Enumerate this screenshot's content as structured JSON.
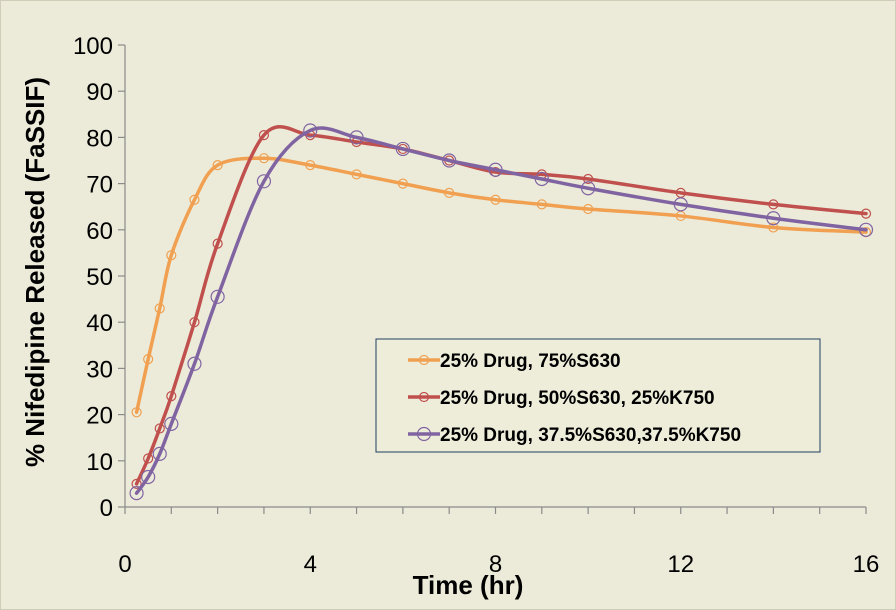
{
  "chart_data": {
    "type": "line",
    "title": "",
    "xlabel": "Time (hr)",
    "ylabel": "% Nifedipine Released (FaSSIF)",
    "xlim": [
      0,
      16
    ],
    "ylim": [
      0,
      100
    ],
    "xticks": [
      0,
      4,
      8,
      12,
      16
    ],
    "yticks": [
      0,
      10,
      20,
      30,
      40,
      50,
      60,
      70,
      80,
      90,
      100
    ],
    "grid": false,
    "legend_position": "lower-right",
    "series": [
      {
        "name": "25% Drug, 75%S630",
        "color": "#f0a050",
        "marker": "small-circle",
        "x": [
          0.25,
          0.5,
          0.75,
          1,
          1.5,
          2,
          3,
          4,
          5,
          6,
          7,
          8,
          9,
          10,
          12,
          14,
          16
        ],
        "y": [
          20.5,
          32,
          43,
          54.5,
          66.5,
          74,
          75.5,
          74,
          72,
          70,
          68,
          66.5,
          65.5,
          64.5,
          63,
          60.5,
          59.5
        ]
      },
      {
        "name": "25% Drug, 50%S630, 25%K750",
        "color": "#c0504d",
        "marker": "small-circle",
        "x": [
          0.25,
          0.5,
          0.75,
          1,
          1.5,
          2,
          3,
          4,
          5,
          6,
          7,
          8,
          9,
          10,
          12,
          14,
          16
        ],
        "y": [
          5,
          10.5,
          17,
          24,
          40,
          57,
          80.5,
          80.5,
          79,
          77.5,
          75,
          72.5,
          72,
          71,
          68,
          65.5,
          63.5
        ]
      },
      {
        "name": "25% Drug, 37.5%S630,37.5%K750",
        "color": "#8064a2",
        "marker": "large-circle",
        "x": [
          0.25,
          0.5,
          0.75,
          1,
          1.5,
          2,
          3,
          4,
          5,
          6,
          7,
          8,
          9,
          10,
          12,
          14,
          16
        ],
        "y": [
          3,
          6.5,
          11.5,
          18,
          31,
          45.5,
          70.5,
          81.5,
          80,
          77.5,
          75,
          73,
          71,
          69,
          65.5,
          62.5,
          60
        ]
      }
    ]
  }
}
